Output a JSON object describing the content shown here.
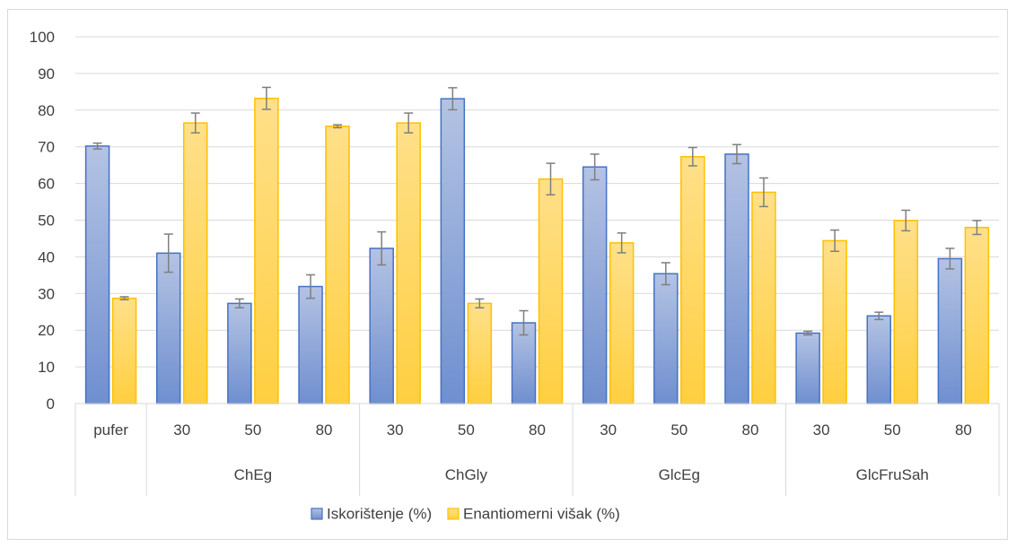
{
  "chart_data": {
    "type": "bar",
    "title": "",
    "xlabel": "",
    "ylabel": "",
    "ylim": [
      0,
      100
    ],
    "yticks": [
      0,
      10,
      20,
      30,
      40,
      50,
      60,
      70,
      80,
      90,
      100
    ],
    "grid": true,
    "legend_position": "bottom",
    "categories": [
      "pufer",
      "30",
      "50",
      "80",
      "30",
      "50",
      "80",
      "30",
      "50",
      "80",
      "30",
      "50",
      "80"
    ],
    "groups": [
      {
        "label": "",
        "count": 1
      },
      {
        "label": "ChEg",
        "count": 3
      },
      {
        "label": "ChGly",
        "count": 3
      },
      {
        "label": "GlcEg",
        "count": 3
      },
      {
        "label": "GlcFruSah",
        "count": 3
      }
    ],
    "series": [
      {
        "name": "Iskorištenje (%)",
        "color": "#4472c4",
        "values": [
          70.2,
          41.0,
          27.3,
          31.9,
          42.3,
          83.1,
          22.0,
          64.5,
          35.4,
          68.0,
          19.2,
          23.9,
          39.5
        ],
        "errors": [
          0.8,
          5.2,
          1.2,
          3.2,
          4.5,
          3.0,
          3.3,
          3.5,
          3.0,
          2.6,
          0.5,
          1.0,
          2.8
        ]
      },
      {
        "name": "Enantiomerni višak (%)",
        "color": "#ffc000",
        "values": [
          28.7,
          76.5,
          83.2,
          75.6,
          76.5,
          27.3,
          61.2,
          43.8,
          67.3,
          57.6,
          44.4,
          49.9,
          48.0
        ],
        "errors": [
          0.4,
          2.7,
          3.0,
          0.4,
          2.7,
          1.2,
          4.3,
          2.7,
          2.5,
          3.9,
          2.9,
          2.8,
          1.9
        ]
      }
    ]
  }
}
